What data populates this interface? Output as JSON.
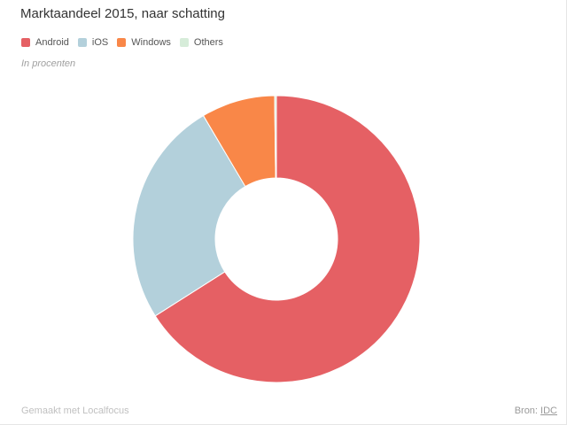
{
  "chart_data": {
    "type": "pie",
    "title": "Marktaandeel 2015, naar schatting",
    "subtitle": "In procenten",
    "categories": [
      "Android",
      "iOS",
      "Windows",
      "Others"
    ],
    "values": [
      66.0,
      25.5,
      8.3,
      0.2
    ],
    "colors": [
      "#e56064",
      "#b3d0db",
      "#f98748",
      "#d6ecd9"
    ],
    "donut": true,
    "legend_position": "top-left"
  },
  "footer": {
    "credit": "Gemaakt met Localfocus",
    "source_prefix": "Bron:",
    "source_link": "IDC"
  }
}
